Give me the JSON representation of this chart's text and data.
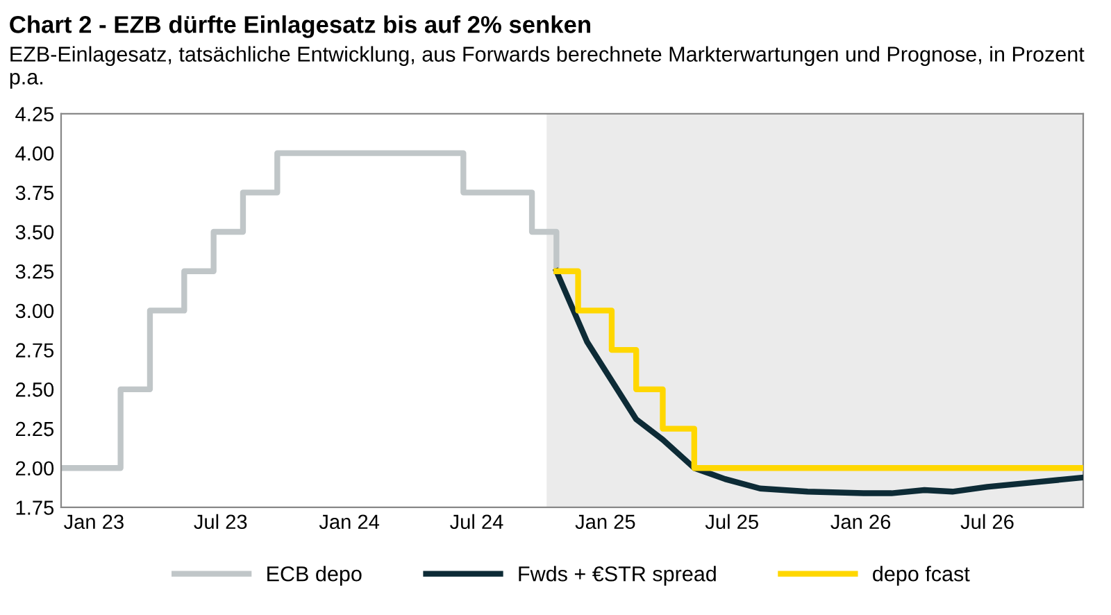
{
  "chart_data": {
    "type": "step",
    "title": "Chart 2 - EZB dürfte Einlagesatz bis auf 2% senken",
    "subtitle": "EZB-Einlagesatz, tatsächliche Entwicklung, aus Forwards berechnete Markterwartungen und Prognose, in Prozent p.a.",
    "series": [
      {
        "name": "ECB depo",
        "color": "#c0c6c8",
        "x": [
          "2022-11-15",
          "2023-02-08",
          "2023-03-22",
          "2023-05-10",
          "2023-06-21",
          "2023-08-02",
          "2023-09-20",
          "2024-06-12",
          "2024-09-18",
          "2024-10-23"
        ],
        "values": [
          2.0,
          2.5,
          3.0,
          3.25,
          3.5,
          3.75,
          4.0,
          3.75,
          3.5,
          3.25
        ]
      },
      {
        "name": "Fwds + €STR spread",
        "color": "#0d2b36",
        "type": "line",
        "x": [
          "2024-10-23",
          "2024-12-06",
          "2025-02-14",
          "2025-03-24",
          "2025-05-08",
          "2025-06-21",
          "2025-08-10",
          "2025-10-17",
          "2026-01-05",
          "2026-02-14",
          "2026-04-02",
          "2026-05-12",
          "2026-07-01",
          "2026-09-08",
          "2026-11-15"
        ],
        "values": [
          3.25,
          2.8,
          2.31,
          2.18,
          2.0,
          1.93,
          1.87,
          1.85,
          1.84,
          1.84,
          1.86,
          1.85,
          1.88,
          1.91,
          1.94
        ]
      },
      {
        "name": "depo fcast",
        "color": "#ffd700",
        "x": [
          "2024-10-23",
          "2024-11-23",
          "2025-01-10",
          "2025-02-14",
          "2025-03-24",
          "2025-05-08",
          "2026-11-15"
        ],
        "values": [
          3.25,
          3.0,
          2.75,
          2.5,
          2.25,
          2.0,
          2.0
        ]
      }
    ],
    "xlim": [
      "2022-11-15",
      "2026-11-15"
    ],
    "xticks": [
      {
        "value": "2023-01-01",
        "label": "Jan 23"
      },
      {
        "value": "2023-07-01",
        "label": "Jul 23"
      },
      {
        "value": "2024-01-01",
        "label": "Jan 24"
      },
      {
        "value": "2024-07-01",
        "label": "Jul 24"
      },
      {
        "value": "2025-01-01",
        "label": "Jan 25"
      },
      {
        "value": "2025-07-01",
        "label": "Jul 25"
      },
      {
        "value": "2026-01-01",
        "label": "Jan 26"
      },
      {
        "value": "2026-07-01",
        "label": "Jul 26"
      }
    ],
    "ylim": [
      1.75,
      4.25
    ],
    "yticks": [
      {
        "value": 1.75,
        "label": "1.75"
      },
      {
        "value": 2,
        "label": "2.00"
      },
      {
        "value": 2.25,
        "label": "2.25"
      },
      {
        "value": 2.5,
        "label": "2.50"
      },
      {
        "value": 2.75,
        "label": "2.75"
      },
      {
        "value": 3,
        "label": "3.00"
      },
      {
        "value": 3.25,
        "label": "3.25"
      },
      {
        "value": 3.5,
        "label": "3.50"
      },
      {
        "value": 3.75,
        "label": "3.75"
      },
      {
        "value": 4,
        "label": "4.00"
      },
      {
        "value": 4.25,
        "label": "4.25"
      }
    ],
    "bands": [
      {
        "axis": "x",
        "from": "2024-10-09",
        "to": "2026-11-15",
        "color": "#ebebeb"
      }
    ],
    "grid": false,
    "legend": "bottom"
  }
}
